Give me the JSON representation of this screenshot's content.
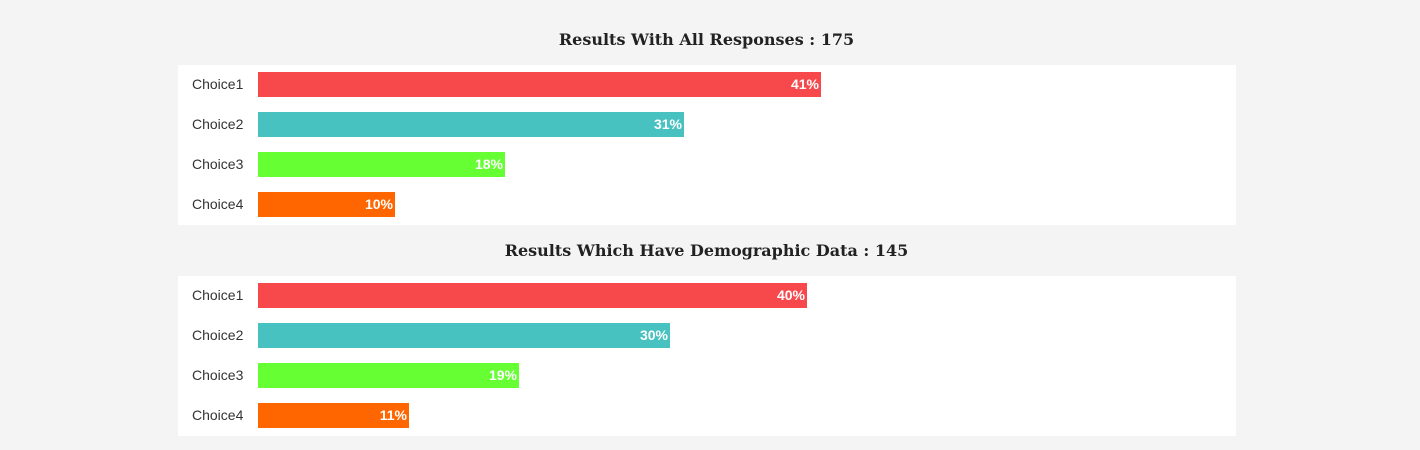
{
  "chart_data": [
    {
      "type": "bar",
      "orientation": "horizontal",
      "title": "Results With All Responses : 175",
      "categories": [
        "Choice1",
        "Choice2",
        "Choice3",
        "Choice4"
      ],
      "values": [
        41,
        31,
        18,
        10
      ],
      "value_labels": [
        "41%",
        "31%",
        "18%",
        "10%"
      ],
      "colors": [
        "#f7494c",
        "#47c2c0",
        "#66ff33",
        "#ff6600"
      ],
      "xlim": [
        0,
        100
      ],
      "grid": false
    },
    {
      "type": "bar",
      "orientation": "horizontal",
      "title": "Results Which Have Demographic Data : 145",
      "categories": [
        "Choice1",
        "Choice2",
        "Choice3",
        "Choice4"
      ],
      "values": [
        40,
        30,
        19,
        11
      ],
      "value_labels": [
        "40%",
        "30%",
        "19%",
        "11%"
      ],
      "colors": [
        "#f7494c",
        "#47c2c0",
        "#66ff33",
        "#ff6600"
      ],
      "xlim": [
        0,
        100
      ],
      "grid": false
    }
  ]
}
